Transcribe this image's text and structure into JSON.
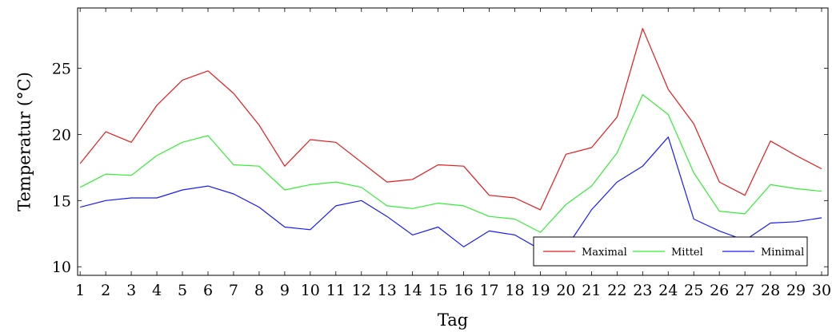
{
  "chart_data": {
    "type": "line",
    "xlabel": "Tag",
    "ylabel": "Temperatur (°C)",
    "x": [
      1,
      2,
      3,
      4,
      5,
      6,
      7,
      8,
      9,
      10,
      11,
      12,
      13,
      14,
      15,
      16,
      17,
      18,
      19,
      20,
      21,
      22,
      23,
      24,
      25,
      26,
      27,
      28,
      29,
      30
    ],
    "xlim": [
      0.9,
      30.25
    ],
    "ylim": [
      9.35,
      29.55
    ],
    "yticks": [
      10,
      15,
      20,
      25
    ],
    "grid": false,
    "legend_position": "bottom-right",
    "legend_layout": "horizontal",
    "series": [
      {
        "name": "Maximal",
        "color": "#e41a1c",
        "values": [
          17.8,
          20.2,
          19.4,
          22.2,
          24.1,
          24.8,
          23.1,
          20.7,
          17.6,
          19.6,
          19.4,
          17.9,
          16.4,
          16.6,
          17.7,
          17.6,
          15.4,
          15.2,
          14.3,
          18.5,
          19.0,
          21.3,
          28.0,
          23.4,
          20.8,
          16.4,
          15.4,
          19.5,
          18.4,
          17.4
        ]
      },
      {
        "name": "Mittel",
        "color": "#33ee33",
        "values": [
          16.0,
          17.0,
          16.9,
          18.4,
          19.4,
          19.9,
          17.7,
          17.6,
          15.8,
          16.2,
          16.4,
          16.0,
          14.6,
          14.4,
          14.8,
          14.6,
          13.8,
          13.6,
          12.6,
          14.7,
          16.1,
          18.6,
          23.0,
          21.5,
          17.1,
          14.2,
          14.0,
          16.2,
          15.9,
          15.7
        ]
      },
      {
        "name": "Minimal",
        "color": "#1a1aff",
        "values": [
          14.5,
          15.0,
          15.2,
          15.2,
          15.8,
          16.1,
          15.5,
          14.5,
          13.0,
          12.8,
          14.6,
          15.0,
          13.8,
          12.4,
          13.0,
          11.5,
          12.7,
          12.4,
          11.3,
          11.4,
          14.3,
          16.4,
          17.6,
          19.8,
          13.6,
          12.7,
          12.0,
          13.3,
          13.4,
          13.7
        ]
      }
    ]
  }
}
